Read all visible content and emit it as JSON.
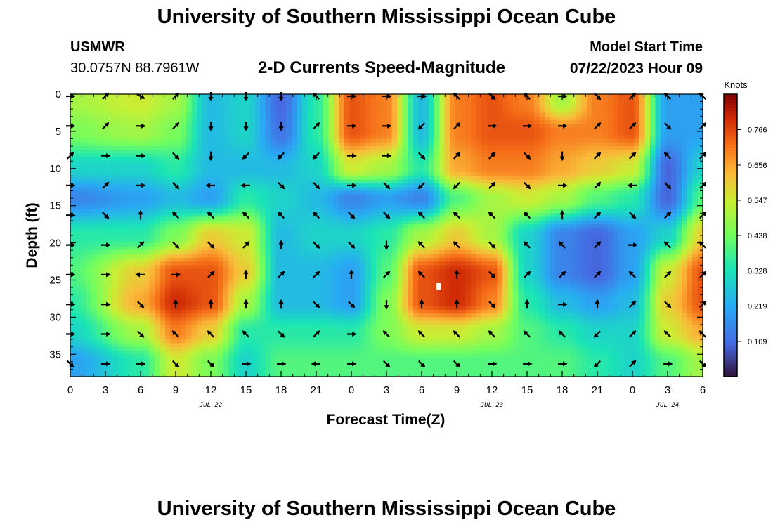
{
  "header": {
    "title": "University of Southern Mississippi Ocean Cube",
    "station_name": "USMWR",
    "station_coords": "30.0757N  88.7961W",
    "subtitle": "2-D Currents Speed-Magnitude",
    "model_start_label": "Model Start Time",
    "model_start_value": "07/22/2023 Hour 09"
  },
  "footer": {
    "title": "University of Southern Mississippi Ocean Cube"
  },
  "colors": {
    "low": "#30123b",
    "mid": "#1ae4b6",
    "high": "#7a0403",
    "arrow": "#000000"
  },
  "chart_data": {
    "type": "heatmap",
    "colormap": "turbo",
    "xlabel": "Forecast Time(Z)",
    "ylabel": "Depth (ft)",
    "x_tick_labels": [
      "0",
      "3",
      "6",
      "9",
      "12",
      "15",
      "18",
      "21",
      "0",
      "3",
      "6",
      "9",
      "12",
      "15",
      "18",
      "21",
      "0",
      "3",
      "6"
    ],
    "x_range_hours": [
      0,
      54
    ],
    "date_labels": [
      {
        "hour": 12,
        "text": "JUL 22"
      },
      {
        "hour": 36,
        "text": "JUL 23"
      },
      {
        "hour": 51,
        "text": "JUL 24"
      }
    ],
    "y_ticks": [
      0,
      5,
      10,
      15,
      20,
      25,
      30,
      35
    ],
    "y_range": [
      0,
      38
    ],
    "y_inverted": true,
    "colorbar": {
      "title": "Knots",
      "ticks": [
        "0.766",
        "0.656",
        "0.547",
        "0.438",
        "0.328",
        "0.219",
        "0.109"
      ],
      "range": [
        0,
        0.876
      ]
    },
    "x_hours": [
      0,
      6,
      9,
      12,
      15,
      18,
      21,
      24,
      27,
      30,
      33,
      36,
      39,
      42,
      45,
      48,
      51,
      54
    ],
    "depths": [
      1,
      5,
      10,
      14,
      19,
      24,
      28,
      32,
      36
    ],
    "speed_knots": [
      [
        0.5,
        0.55,
        0.5,
        0.25,
        0.3,
        0.1,
        0.35,
        0.75,
        0.7,
        0.25,
        0.7,
        0.75,
        0.7,
        0.5,
        0.7,
        0.75,
        0.2,
        0.2
      ],
      [
        0.45,
        0.5,
        0.45,
        0.25,
        0.3,
        0.12,
        0.35,
        0.75,
        0.7,
        0.25,
        0.7,
        0.75,
        0.75,
        0.7,
        0.7,
        0.75,
        0.2,
        0.2
      ],
      [
        0.3,
        0.3,
        0.35,
        0.25,
        0.25,
        0.25,
        0.3,
        0.55,
        0.5,
        0.35,
        0.65,
        0.7,
        0.7,
        0.65,
        0.6,
        0.55,
        0.1,
        0.3
      ],
      [
        0.15,
        0.2,
        0.25,
        0.2,
        0.35,
        0.3,
        0.25,
        0.15,
        0.2,
        0.15,
        0.4,
        0.5,
        0.55,
        0.5,
        0.4,
        0.35,
        0.1,
        0.4
      ],
      [
        0.35,
        0.35,
        0.45,
        0.6,
        0.55,
        0.25,
        0.3,
        0.3,
        0.35,
        0.5,
        0.6,
        0.5,
        0.3,
        0.15,
        0.1,
        0.2,
        0.3,
        0.6
      ],
      [
        0.4,
        0.6,
        0.75,
        0.75,
        0.6,
        0.25,
        0.25,
        0.2,
        0.4,
        0.75,
        0.8,
        0.75,
        0.3,
        0.15,
        0.1,
        0.2,
        0.55,
        0.75
      ],
      [
        0.35,
        0.65,
        0.8,
        0.75,
        0.5,
        0.25,
        0.25,
        0.2,
        0.45,
        0.75,
        0.8,
        0.7,
        0.35,
        0.25,
        0.2,
        0.25,
        0.6,
        0.75
      ],
      [
        0.3,
        0.5,
        0.7,
        0.6,
        0.35,
        0.35,
        0.35,
        0.35,
        0.45,
        0.55,
        0.55,
        0.5,
        0.4,
        0.35,
        0.3,
        0.3,
        0.55,
        0.65
      ],
      [
        0.2,
        0.35,
        0.55,
        0.45,
        0.3,
        0.4,
        0.4,
        0.4,
        0.4,
        0.4,
        0.4,
        0.4,
        0.4,
        0.4,
        0.35,
        0.3,
        0.4,
        0.5
      ]
    ],
    "vector_x_hours": [
      0,
      3,
      6,
      9,
      12,
      15,
      18,
      21,
      24,
      27,
      30,
      33,
      36,
      39,
      42,
      45,
      48,
      51,
      54
    ],
    "vector_depths": [
      0,
      4,
      8,
      12,
      16,
      20,
      24,
      28,
      32,
      36
    ],
    "vector_direction_deg": [
      [
        90,
        45,
        120,
        45,
        180,
        180,
        180,
        315,
        90,
        90,
        90,
        315,
        135,
        315,
        90,
        135,
        45,
        315,
        315
      ],
      [
        90,
        45,
        90,
        45,
        180,
        180,
        180,
        45,
        90,
        90,
        225,
        45,
        90,
        90,
        90,
        45,
        45,
        135,
        45
      ],
      [
        45,
        90,
        90,
        135,
        180,
        225,
        225,
        225,
        90,
        90,
        135,
        45,
        45,
        135,
        180,
        45,
        45,
        315,
        45
      ],
      [
        90,
        45,
        90,
        135,
        270,
        270,
        135,
        135,
        90,
        135,
        225,
        225,
        45,
        135,
        90,
        45,
        270,
        135,
        45
      ],
      [
        90,
        135,
        0,
        315,
        315,
        315,
        315,
        315,
        135,
        135,
        315,
        315,
        315,
        315,
        0,
        45,
        135,
        45,
        45
      ],
      [
        90,
        90,
        45,
        135,
        135,
        45,
        0,
        135,
        135,
        180,
        315,
        315,
        135,
        315,
        315,
        45,
        90,
        315,
        315
      ],
      [
        90,
        90,
        270,
        90,
        45,
        0,
        45,
        45,
        0,
        45,
        315,
        0,
        135,
        45,
        45,
        45,
        315,
        45,
        45
      ],
      [
        90,
        90,
        135,
        0,
        0,
        0,
        0,
        135,
        135,
        180,
        0,
        0,
        135,
        0,
        90,
        0,
        45,
        135,
        45
      ],
      [
        90,
        90,
        135,
        315,
        315,
        315,
        135,
        45,
        90,
        315,
        315,
        315,
        315,
        315,
        315,
        225,
        45,
        315,
        315
      ],
      [
        135,
        90,
        90,
        135,
        135,
        90,
        90,
        270,
        90,
        135,
        135,
        135,
        90,
        90,
        90,
        225,
        45,
        90,
        135
      ]
    ]
  }
}
